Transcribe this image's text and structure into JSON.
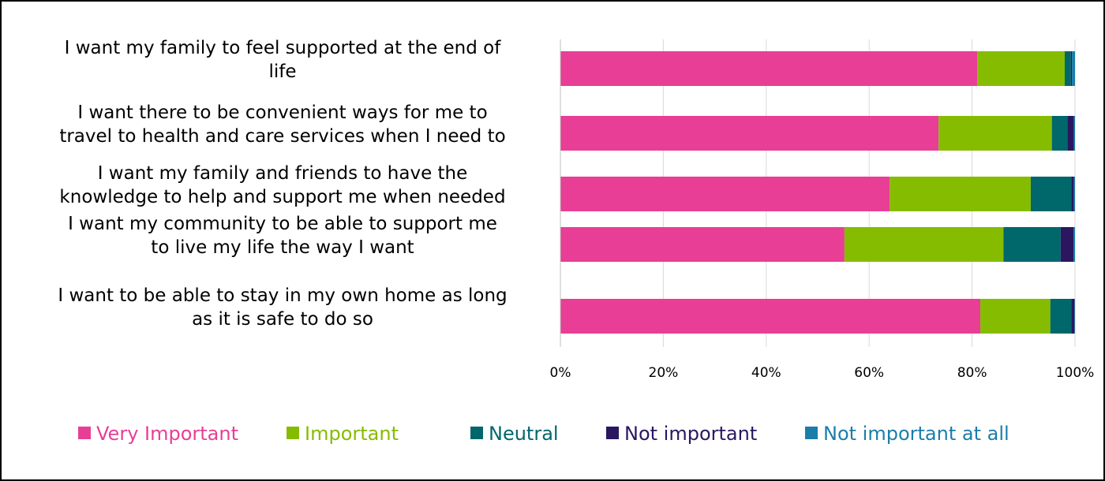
{
  "chart_data": {
    "type": "bar",
    "orientation": "horizontal",
    "stacked": "percent",
    "categories": [
      "I want my family to feel supported at the end of life",
      "I want there to be convenient ways for me to travel to health and care services when I need to",
      "I want my family and friends to have the knowledge to help and support me when needed",
      "I want my community to be able to support me to live my life the way I want",
      "I want to be able to stay in my own home as long as it is safe to do so"
    ],
    "category_lines": [
      [
        "I want my family to feel supported at the end of",
        "life"
      ],
      [
        "I want there to be convenient ways for me to",
        "travel to health and care services when I need to"
      ],
      [
        "I want my family and friends to have the",
        "knowledge to help and support me when needed"
      ],
      [
        "I want my community to be able to support me",
        "to live my life the way I want"
      ],
      [
        "I want to be able to stay in my own home as long",
        "as it is safe to do so"
      ]
    ],
    "series": [
      {
        "name": "Very Important",
        "color": "#E83E96",
        "values": [
          81,
          73.5,
          64,
          55.2,
          81.6
        ]
      },
      {
        "name": "Important",
        "color": "#86BC00",
        "values": [
          17,
          22,
          27.4,
          30.9,
          13.6
        ]
      },
      {
        "name": "Neutral",
        "color": "#00676B",
        "values": [
          1.2,
          3,
          7.9,
          11.1,
          4.1
        ]
      },
      {
        "name": "Not important",
        "color": "#2A1760",
        "values": [
          0.2,
          1.3,
          0.5,
          2.5,
          0.6
        ]
      },
      {
        "name": "Not important at all",
        "color": "#1B7DAA",
        "values": [
          0.6,
          0.2,
          0.2,
          0.3,
          0.1
        ]
      }
    ],
    "x_ticks": [
      "0%",
      "20%",
      "40%",
      "60%",
      "80%",
      "100%"
    ],
    "xlim": [
      0,
      100
    ],
    "grid": true,
    "legend_position": "bottom"
  }
}
